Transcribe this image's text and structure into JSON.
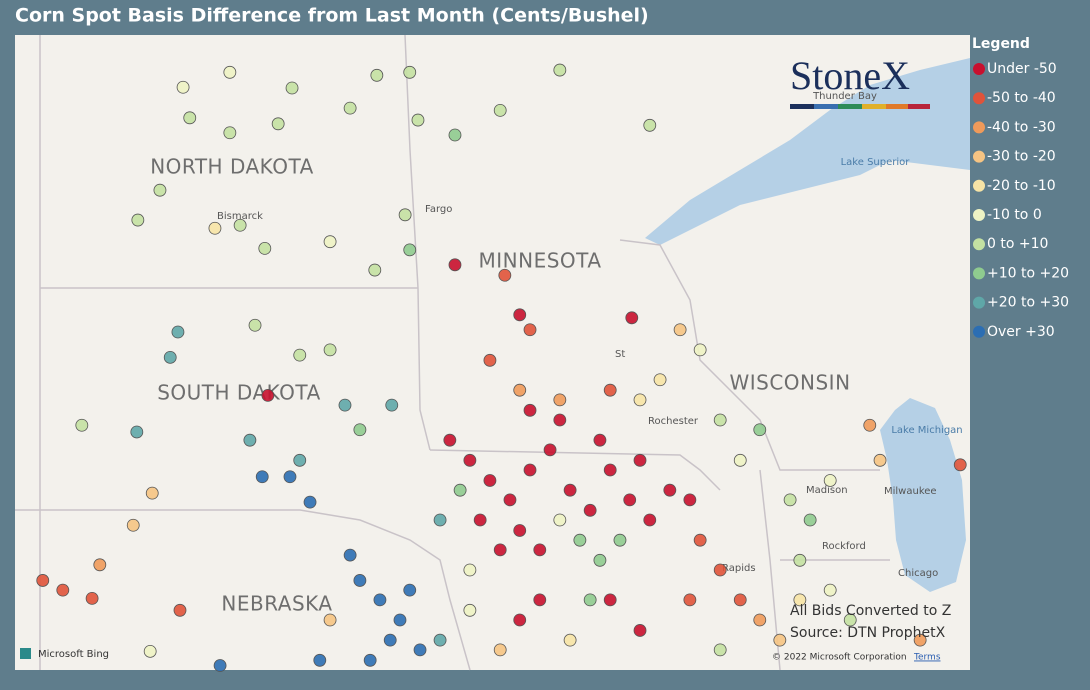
{
  "title": "Corn Spot Basis Difference from Last Month (Cents/Bushel)",
  "legend": {
    "title": "Legend",
    "items": [
      {
        "label": "Under -50",
        "color": "#c8102e"
      },
      {
        "label": "-50 to -40",
        "color": "#e0533a"
      },
      {
        "label": "-40 to -30",
        "color": "#ef9a5a"
      },
      {
        "label": "-30 to -20",
        "color": "#f6c483"
      },
      {
        "label": "-20 to -10",
        "color": "#f7e4a6"
      },
      {
        "label": "-10 to 0",
        "color": "#eef3c4"
      },
      {
        "label": "0 to +10",
        "color": "#c4e1a2"
      },
      {
        "label": "+10 to +20",
        "color": "#8fcb8f"
      },
      {
        "label": "+20 to +30",
        "color": "#5fa7a8"
      },
      {
        "label": "Over +30",
        "color": "#2b6eb3"
      }
    ]
  },
  "map": {
    "type": "scatter-map",
    "lon_range": [
      -104.71,
      -86.13
    ],
    "lat_range": [
      49.25,
      40.74
    ],
    "labels": [
      "NORTH DAKOTA",
      "MINNESOTA",
      "SOUTH DAKOTA",
      "WISCONSIN",
      "NEBRASKA",
      "Bismarck",
      "Fargo",
      "St",
      "Rochester",
      "Madison",
      "Milwaukee",
      "Rockford",
      "Chicago",
      "Rapids",
      "Lake Superior",
      "Lake Michigan",
      "Thunder Bay"
    ]
  },
  "points": {
    "lon": [
      -101.44,
      -100.53,
      -99.32,
      -97.67,
      -97.03,
      -101.31,
      -100.53,
      -99.59,
      -98.19,
      -96.87,
      -101.89,
      -100.33,
      -98.58,
      -97.12,
      -102.32,
      -99.85,
      -100.82,
      -97.71,
      -97.03,
      -96.15,
      -95.27,
      -94.11,
      -92.36,
      -101.54,
      -101.69,
      -100.04,
      -99.17,
      -99.79,
      -98.58,
      -98.29,
      -97.38,
      -102.34,
      -100.14,
      -99.17,
      -99.9,
      -99.36,
      -98.97,
      -102.04,
      -103.41,
      -98.0,
      -104.17,
      -103.78,
      -103.06,
      -102.41,
      -103.21,
      -101.5,
      -98.19,
      -98.0,
      -97.61,
      -97.22,
      -96.83,
      -97.03,
      -96.44,
      -97.41,
      -97.8,
      -98.78,
      -100.72,
      -95.86,
      -95.27,
      -96.25,
      -95.86,
      -95.47,
      -95.08,
      -94.69,
      -94.3,
      -93.91,
      -93.52,
      -93.13,
      -92.75,
      -92.36,
      -91.97,
      -94.89,
      -94.5,
      -95.27,
      -95.66,
      -94.11,
      -94.69,
      -93.33,
      -92.55,
      -91.58,
      -94.89,
      -94.5,
      -93.13,
      -92.55,
      -91.58,
      -94.89,
      -94.69,
      -95.18,
      -96.15,
      -92.71,
      -95.47,
      -94.89,
      -94.11,
      -93.72,
      -93.33,
      -92.94,
      -96.05,
      -96.44,
      -94.11,
      -91.38,
      -90.99,
      -90.6,
      -90.22,
      -89.83,
      -89.44,
      -88.85,
      -88.46,
      -87.1,
      -86.32,
      -87.88,
      -88.08,
      -91.77,
      -91.38,
      -90.99,
      -90.6,
      -90.22,
      -89.63,
      -89.24,
      -88.85,
      -92.55,
      -92.16,
      -93.13,
      -93.52,
      -93.91,
      -95.86,
      -90.99,
      -89.44,
      -98.58,
      -102.08
    ],
    "lat": [
      48.55,
      48.75,
      48.54,
      48.71,
      48.75,
      48.14,
      47.94,
      48.06,
      48.27,
      48.11,
      47.17,
      46.7,
      46.48,
      46.84,
      46.77,
      46.39,
      46.66,
      46.1,
      46.37,
      47.91,
      48.24,
      48.78,
      48.04,
      45.27,
      44.93,
      45.36,
      44.96,
      44.42,
      45.03,
      44.29,
      44.29,
      43.93,
      43.82,
      43.55,
      43.33,
      43.33,
      42.99,
      43.11,
      44.02,
      43.96,
      41.94,
      41.81,
      42.15,
      42.68,
      41.7,
      41.54,
      42.28,
      41.94,
      41.68,
      41.41,
      41.01,
      41.81,
      41.14,
      41.14,
      40.87,
      40.87,
      40.8,
      41.54,
      41.01,
      43.82,
      43.55,
      43.28,
      43.02,
      43.42,
      43.69,
      43.15,
      42.88,
      43.42,
      43.02,
      42.75,
      43.15,
      42.61,
      42.35,
      42.35,
      42.75,
      44.09,
      44.22,
      43.82,
      43.55,
      43.02,
      41.41,
      41.68,
      41.68,
      41.27,
      41.68,
      45.5,
      45.3,
      46.03,
      46.17,
      45.46,
      44.89,
      44.49,
      44.36,
      42.48,
      42.21,
      42.48,
      43.15,
      42.75,
      42.75,
      42.48,
      42.08,
      41.68,
      41.41,
      41.14,
      41.68,
      41.81,
      41.41,
      41.14,
      43.49,
      43.55,
      44.02,
      45.3,
      45.03,
      44.09,
      43.55,
      43.96,
      43.02,
      42.75,
      43.28,
      44.36,
      44.63,
      44.49,
      41.68,
      41.14,
      42.08,
      41.01,
      42.21,
      41.41,
      40.99
    ],
    "bin": [
      5,
      5,
      6,
      6,
      6,
      6,
      6,
      6,
      6,
      6,
      6,
      6,
      5,
      6,
      6,
      6,
      4,
      6,
      7,
      7,
      6,
      6,
      6,
      8,
      8,
      6,
      6,
      0,
      6,
      8,
      8,
      8,
      8,
      8,
      9,
      9,
      9,
      3,
      6,
      7,
      1,
      1,
      2,
      3,
      1,
      1,
      9,
      9,
      9,
      9,
      9,
      9,
      8,
      9,
      9,
      9,
      9,
      5,
      3,
      0,
      0,
      0,
      0,
      0,
      0,
      0,
      0,
      0,
      0,
      0,
      0,
      0,
      0,
      0,
      0,
      0,
      0,
      0,
      0,
      0,
      0,
      0,
      0,
      0,
      1,
      0,
      1,
      1,
      0,
      0,
      1,
      2,
      2,
      7,
      7,
      7,
      7,
      8,
      5,
      1,
      1,
      1,
      2,
      3,
      4,
      5,
      6,
      2,
      1,
      3,
      2,
      3,
      5,
      6,
      5,
      7,
      6,
      7,
      5,
      4,
      4,
      1,
      7,
      4,
      5,
      6,
      6,
      3,
      5
    ]
  },
  "logo": "StoneX",
  "notes": [
    "All Bids Converted to Z",
    "Source: DTN ProphetX"
  ],
  "attribution": {
    "provider": "Microsoft Bing",
    "copyright": "© 2022 Microsoft Corporation",
    "terms": "Terms"
  }
}
